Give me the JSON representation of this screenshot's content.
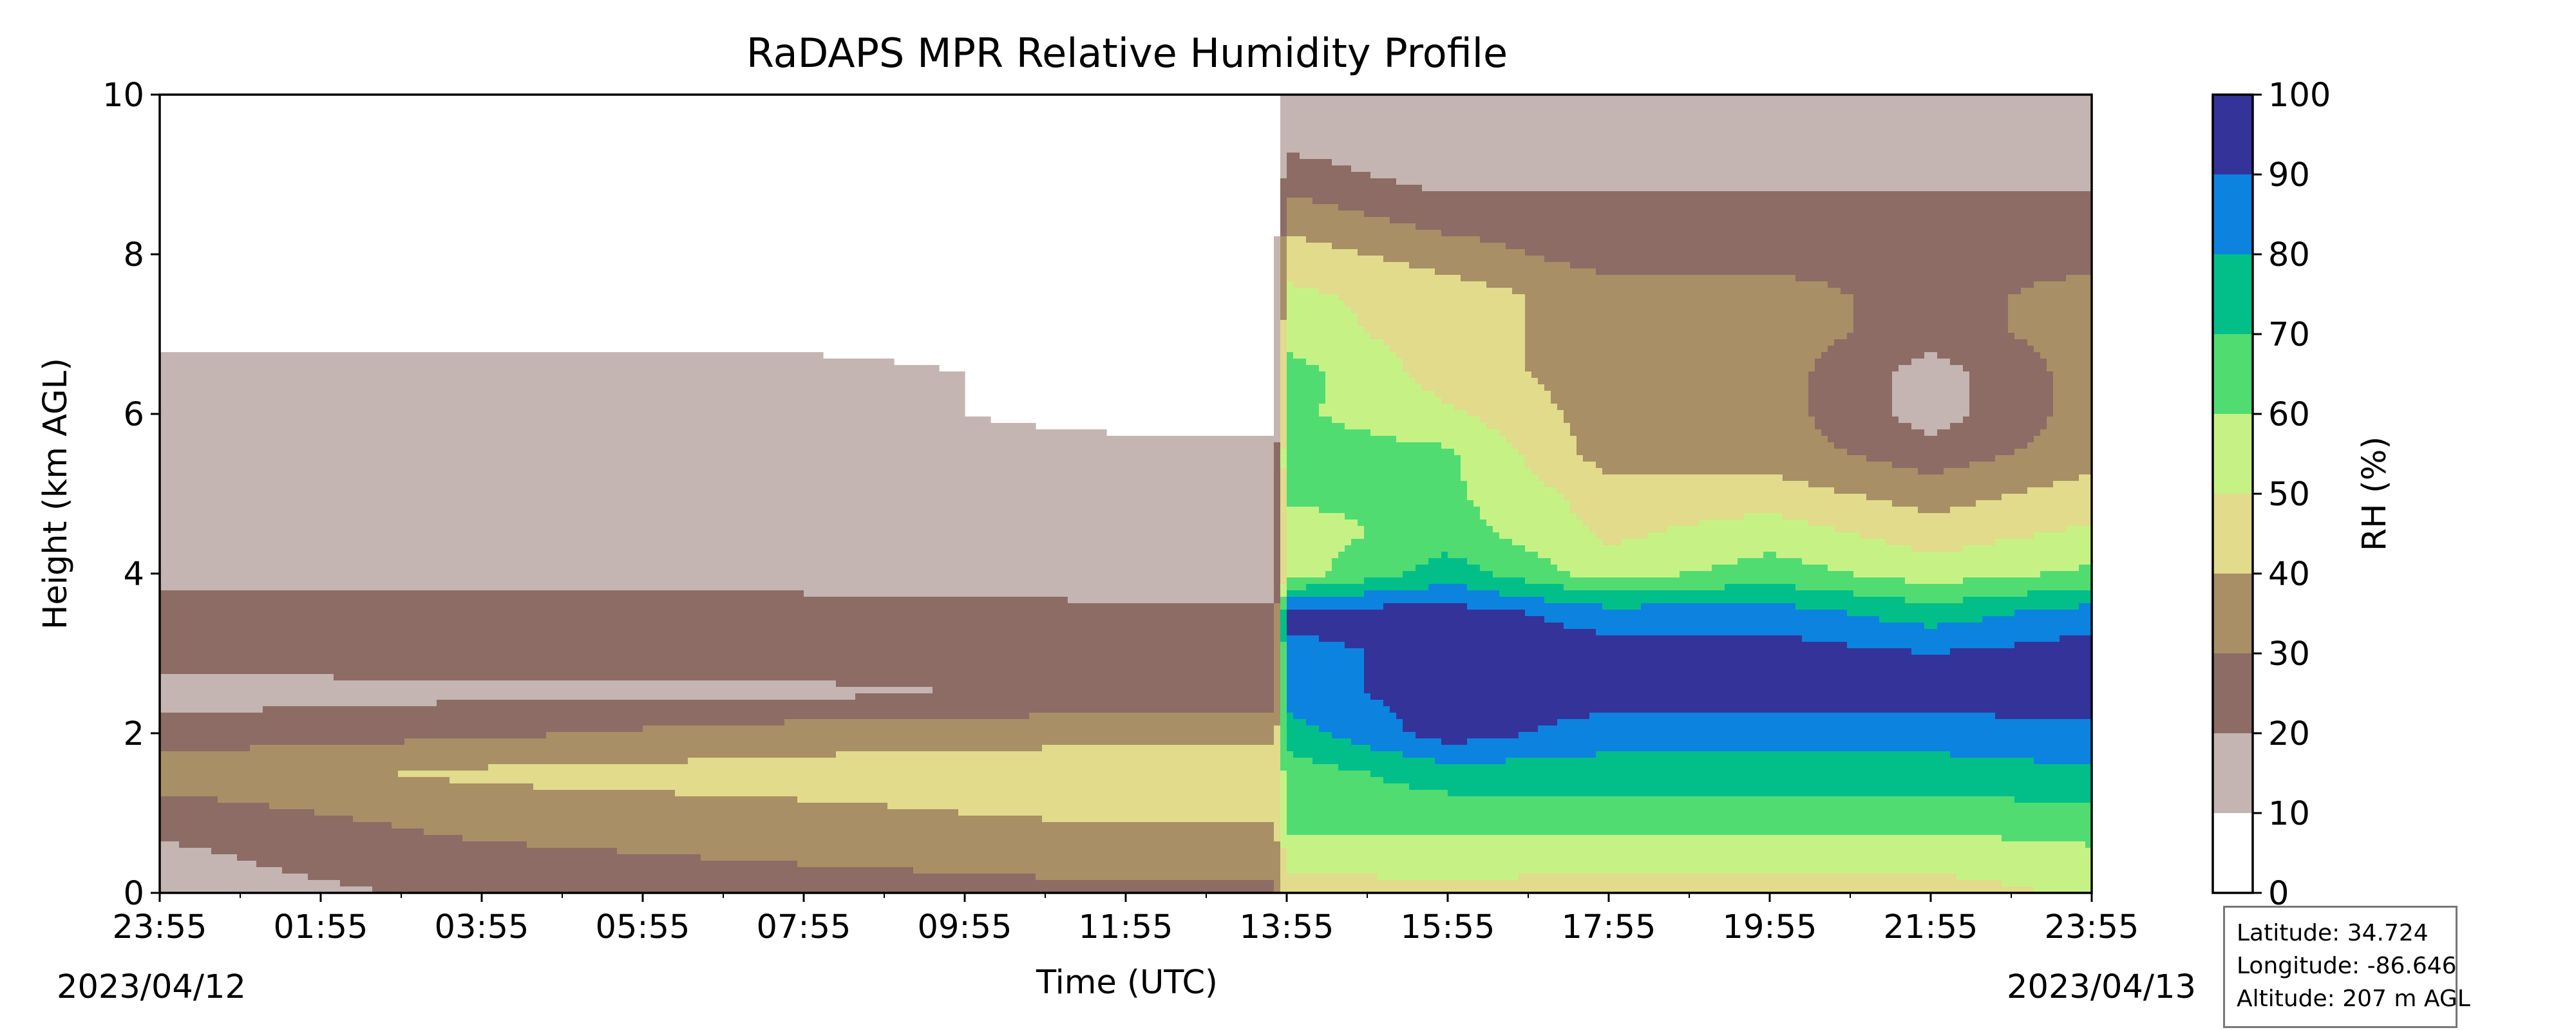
{
  "chart_data": {
    "type": "filled-contour",
    "title": "RaDAPS MPR Relative Humidity Profile",
    "xlabel": "Time (UTC)",
    "ylabel": "Height (km AGL)",
    "ylim": [
      0,
      10
    ],
    "yticks": [
      "0",
      "2",
      "4",
      "6",
      "8",
      "10"
    ],
    "xticks": [
      "23:55",
      "01:55",
      "03:55",
      "05:55",
      "07:55",
      "09:55",
      "11:55",
      "13:55",
      "15:55",
      "17:55",
      "19:55",
      "21:55",
      "23:55"
    ],
    "start_date": "2023/04/12",
    "end_date": "2023/04/13",
    "colorbar": {
      "label": "RH (%)",
      "ticks": [
        "0",
        "10",
        "20",
        "30",
        "40",
        "50",
        "60",
        "70",
        "80",
        "90",
        "100"
      ],
      "bins": [
        {
          "range": [
            0,
            10
          ],
          "color": "#ffffff"
        },
        {
          "range": [
            10,
            20
          ],
          "color": "#c4b5b2"
        },
        {
          "range": [
            20,
            30
          ],
          "color": "#8c6c65"
        },
        {
          "range": [
            30,
            40
          ],
          "color": "#a88f65"
        },
        {
          "range": [
            40,
            50
          ],
          "color": "#e1db8b"
        },
        {
          "range": [
            50,
            60
          ],
          "color": "#c6f285"
        },
        {
          "range": [
            60,
            70
          ],
          "color": "#51dc72"
        },
        {
          "range": [
            70,
            80
          ],
          "color": "#02bf8a"
        },
        {
          "range": [
            80,
            90
          ],
          "color": "#0d83e0"
        },
        {
          "range": [
            90,
            100
          ],
          "color": "#33339a"
        }
      ]
    },
    "rh_field": {
      "heights_km": [
        0,
        0.5,
        1,
        1.5,
        2,
        2.5,
        3,
        3.5,
        4,
        4.5,
        5,
        5.5,
        6,
        6.5,
        7,
        7.5,
        8,
        8.5,
        9,
        9.5,
        10
      ],
      "series": [
        {
          "time": "23:55",
          "rh": [
            15,
            18,
            25,
            35,
            25,
            15,
            25,
            25,
            15,
            15,
            15,
            15,
            15,
            15,
            5,
            5,
            5,
            5,
            5,
            5,
            5
          ]
        },
        {
          "time": "03:55",
          "rh": [
            22,
            28,
            35,
            42,
            28,
            18,
            25,
            25,
            15,
            15,
            15,
            15,
            15,
            15,
            5,
            5,
            5,
            5,
            5,
            5,
            5
          ]
        },
        {
          "time": "07:55",
          "rh": [
            25,
            32,
            38,
            44,
            35,
            18,
            25,
            25,
            15,
            15,
            15,
            15,
            15,
            15,
            5,
            5,
            5,
            5,
            5,
            5,
            5
          ]
        },
        {
          "time": "11:55",
          "rh": [
            28,
            35,
            42,
            45,
            38,
            22,
            25,
            22,
            15,
            15,
            15,
            15,
            5,
            5,
            5,
            5,
            5,
            5,
            5,
            5,
            5
          ]
        },
        {
          "time": "13:55",
          "rh": [
            45,
            55,
            65,
            65,
            75,
            85,
            85,
            95,
            55,
            55,
            62,
            65,
            62,
            65,
            55,
            52,
            45,
            35,
            25,
            15,
            15
          ]
        },
        {
          "time": "15:55",
          "rh": [
            48,
            55,
            65,
            75,
            95,
            95,
            95,
            95,
            75,
            65,
            62,
            62,
            52,
            45,
            45,
            45,
            35,
            25,
            15,
            15,
            15
          ]
        },
        {
          "time": "17:55",
          "rh": [
            45,
            55,
            65,
            75,
            85,
            95,
            95,
            85,
            55,
            48,
            45,
            35,
            35,
            35,
            35,
            35,
            25,
            25,
            15,
            15,
            15
          ]
        },
        {
          "time": "19:55",
          "rh": [
            45,
            55,
            65,
            75,
            85,
            95,
            95,
            85,
            65,
            55,
            45,
            35,
            35,
            35,
            35,
            35,
            25,
            25,
            15,
            15,
            15
          ]
        },
        {
          "time": "21:55",
          "rh": [
            45,
            55,
            65,
            75,
            85,
            95,
            90,
            75,
            55,
            45,
            35,
            25,
            15,
            15,
            25,
            25,
            25,
            25,
            15,
            15,
            15
          ]
        },
        {
          "time": "23:55",
          "rh": [
            52,
            58,
            68,
            78,
            88,
            95,
            95,
            85,
            62,
            52,
            45,
            35,
            35,
            35,
            35,
            35,
            25,
            25,
            15,
            15,
            15
          ]
        }
      ]
    }
  },
  "info_box": {
    "latitude": "Latitude: 34.724",
    "longitude": "Longitude: -86.646",
    "altitude": "Altitude: 207 m AGL"
  }
}
